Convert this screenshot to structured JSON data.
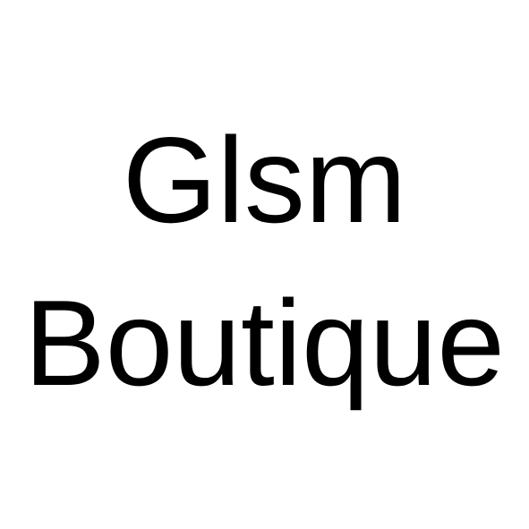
{
  "logo": {
    "line1": "Glsm",
    "line2": "Boutique"
  },
  "colors": {
    "background": "#ffffff",
    "text": "#000000"
  }
}
